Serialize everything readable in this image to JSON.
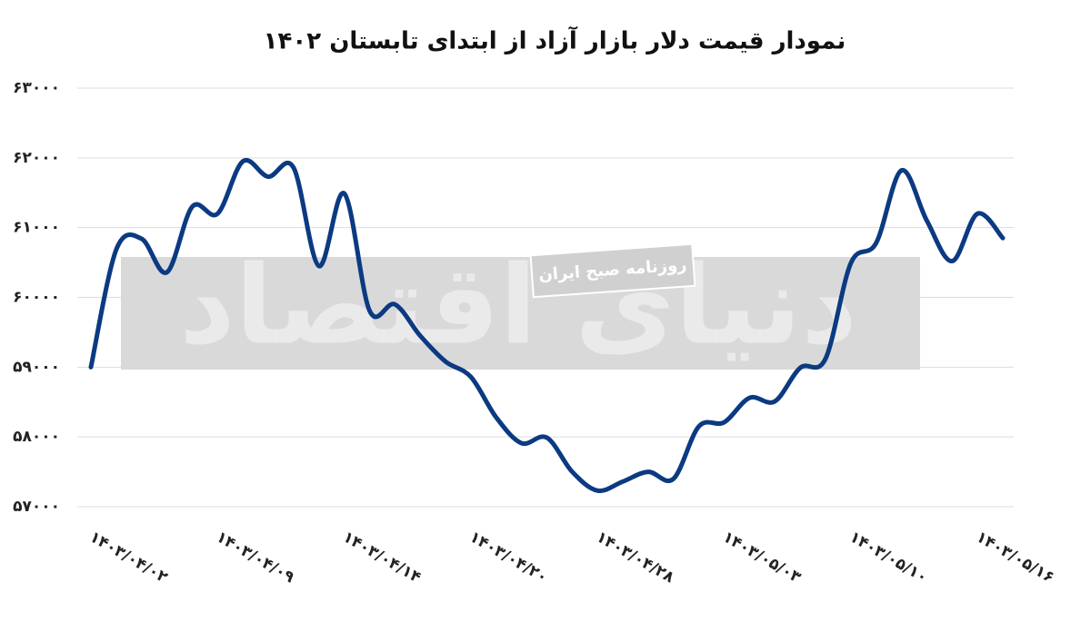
{
  "chart_data": {
    "type": "line",
    "title": "نمودار قیمت دلار بازار آزاد از ابتدای تابستان ۱۴۰۲",
    "watermark": "روزنامه صبح ایران",
    "logo": "دنیای اقتصاد",
    "categories": [
      "۱۴۰۳/۰۴/۰۲",
      null,
      null,
      null,
      null,
      "۱۴۰۳/۰۴/۰۹",
      null,
      null,
      null,
      null,
      "۱۴۰۳/۰۴/۱۴",
      null,
      null,
      null,
      null,
      "۱۴۰۳/۰۴/۲۰",
      null,
      null,
      null,
      null,
      "۱۴۰۳/۰۴/۲۸",
      null,
      null,
      null,
      null,
      "۱۴۰۳/۰۵/۰۳",
      null,
      null,
      null,
      null,
      "۱۴۰۳/۰۵/۱۰",
      null,
      null,
      null,
      null,
      "۱۴۰۳/۰۵/۱۶",
      null
    ],
    "series": [
      {
        "color": "#0b3a82",
        "values": [
          59000,
          60685,
          60840,
          60360,
          61300,
          61200,
          61950,
          61730,
          61860,
          60450,
          61490,
          59810,
          59900,
          59450,
          59080,
          58860,
          58280,
          57910,
          57990,
          57500,
          57230,
          57360,
          57500,
          57400,
          58150,
          58210,
          58560,
          58510,
          58990,
          59120,
          60490,
          60780,
          61820,
          61100,
          60520,
          61200,
          60850
        ]
      }
    ],
    "ylim": [
      57000,
      63000
    ],
    "yticks": [
      {
        "value": 63000,
        "label": "۶۳۰۰۰"
      },
      {
        "value": 62000,
        "label": "۶۲۰۰۰"
      },
      {
        "value": 61000,
        "label": "۶۱۰۰۰"
      },
      {
        "value": 60000,
        "label": "۶۰۰۰۰"
      },
      {
        "value": 59000,
        "label": "۵۹۰۰۰"
      },
      {
        "value": 58000,
        "label": "۵۸۰۰۰"
      },
      {
        "value": 57000,
        "label": "۵۷۰۰۰"
      }
    ],
    "grid": true
  }
}
